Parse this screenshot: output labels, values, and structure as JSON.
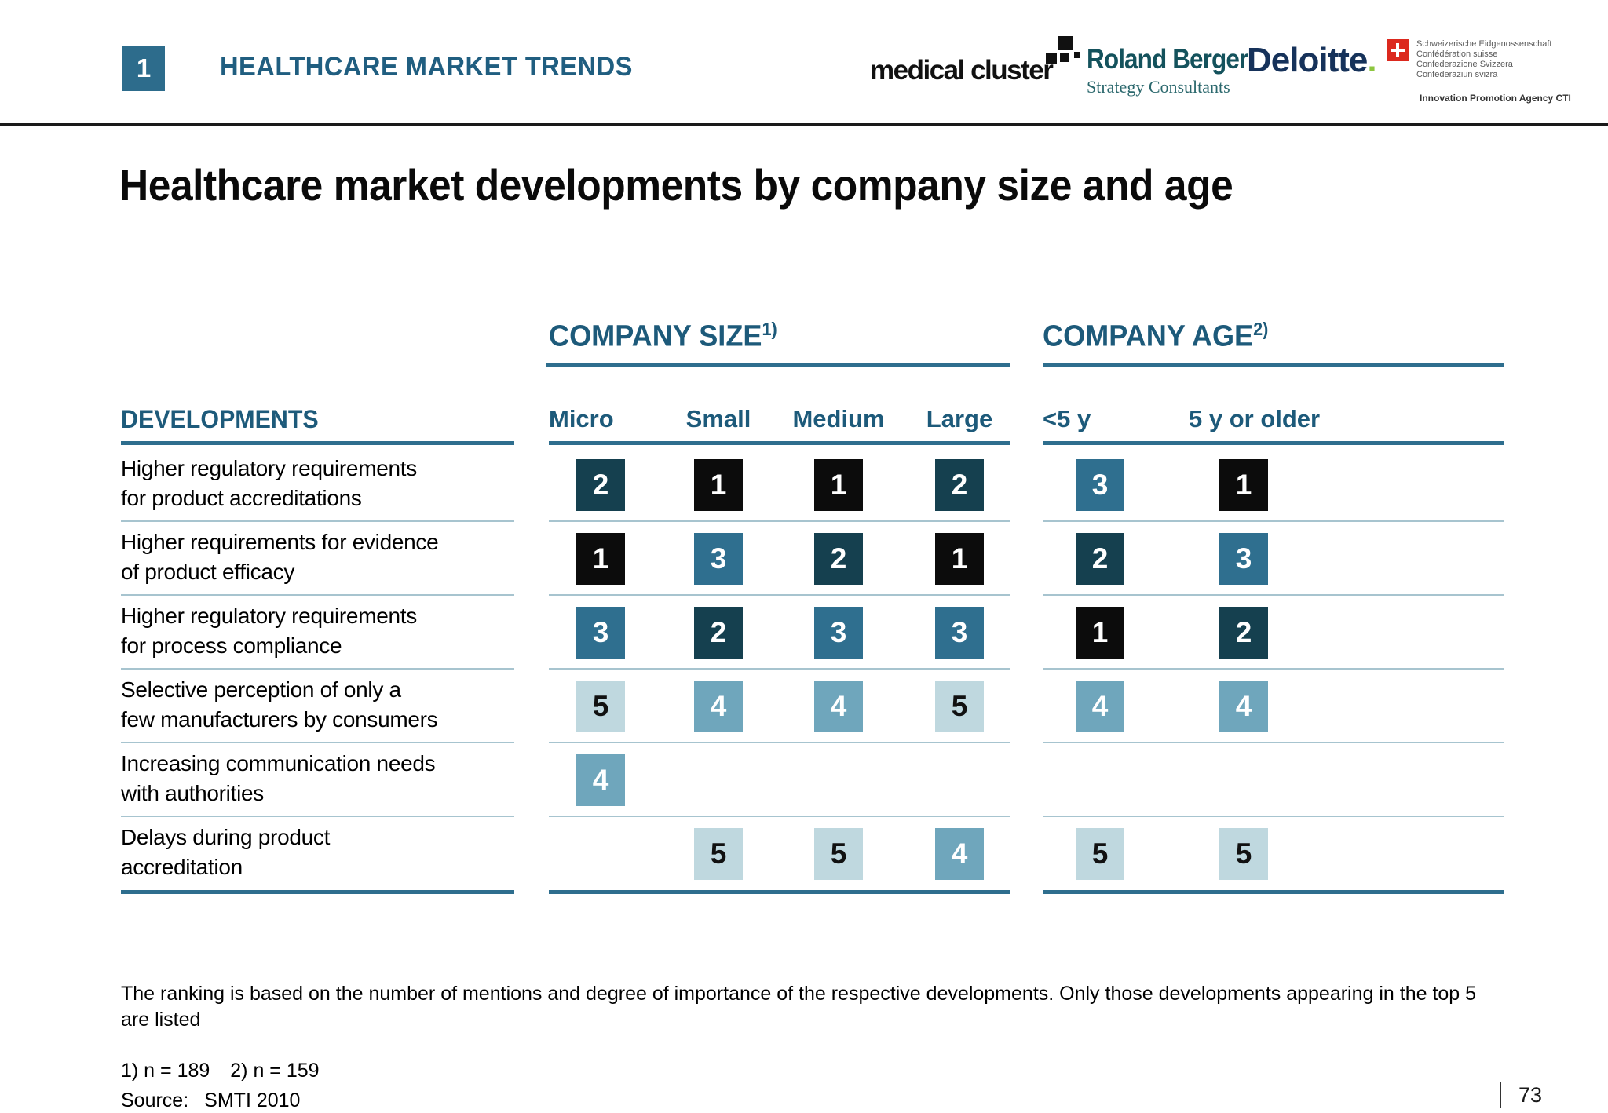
{
  "header": {
    "badge": "1",
    "section_title": "HEALTHCARE MARKET TRENDS",
    "logos": {
      "medical_cluster": {
        "text": "medical cluster"
      },
      "roland_berger": {
        "line1": "Roland Berger",
        "line2": "Strategy Consultants"
      },
      "deloitte": {
        "text": "Deloitte",
        "dot": "."
      },
      "swiss": {
        "lines": [
          "Schweizerische Eidgenossenschaft",
          "Confédération suisse",
          "Confederazione Svizzera",
          "Confederaziun svizra"
        ],
        "agency": "Innovation Promotion Agency CTI"
      }
    }
  },
  "slide": {
    "title": "Healthcare market developments by company size and age"
  },
  "table": {
    "developments_header": "DEVELOPMENTS",
    "groups": [
      {
        "label": "COMPANY SIZE",
        "sup": "1)",
        "columns": [
          "Micro",
          "Small",
          "Medium",
          "Large"
        ]
      },
      {
        "label": "COMPANY AGE",
        "sup": "2)",
        "columns": [
          "<5 y",
          "5 y or older"
        ]
      }
    ],
    "rows": [
      {
        "label_lines": [
          "Higher regulatory requirements",
          "for product accreditations"
        ],
        "size": [
          2,
          1,
          1,
          2
        ],
        "age": [
          3,
          1
        ]
      },
      {
        "label_lines": [
          "Higher requirements for evidence",
          "of product efficacy"
        ],
        "size": [
          1,
          3,
          2,
          1
        ],
        "age": [
          2,
          3
        ]
      },
      {
        "label_lines": [
          "Higher regulatory requirements",
          "for process compliance"
        ],
        "size": [
          3,
          2,
          3,
          3
        ],
        "age": [
          1,
          2
        ]
      },
      {
        "label_lines": [
          "Selective perception of only a",
          "few manufacturers by consumers"
        ],
        "size": [
          5,
          4,
          4,
          5
        ],
        "age": [
          4,
          4
        ]
      },
      {
        "label_lines": [
          "Increasing communication needs",
          "with authorities"
        ],
        "size": [
          4,
          null,
          null,
          null
        ],
        "age": [
          null,
          null
        ]
      },
      {
        "label_lines": [
          "Delays during product",
          "accreditation"
        ],
        "size": [
          null,
          5,
          5,
          4
        ],
        "age": [
          5,
          5
        ]
      }
    ]
  },
  "rank_styles": {
    "1": {
      "bg": "#0c0c0c",
      "fg": "#ffffff"
    },
    "2": {
      "bg": "#15404f",
      "fg": "#ffffff"
    },
    "3": {
      "bg": "#2f6f8f",
      "fg": "#ffffff"
    },
    "4": {
      "bg": "#6fa6bc",
      "fg": "#ffffff"
    },
    "5": {
      "bg": "#bfd8df",
      "fg": "#111111"
    }
  },
  "accent_colors": {
    "teal_heading": "#1d5a7a",
    "teal_rule": "#2e6e8e",
    "row_separator": "#a7c4cf",
    "badge_bg": "#2d6c8c"
  },
  "footer": {
    "note": "The ranking is based on the number of mentions and degree of importance of the respective developments. Only those developments appearing in the top 5 are listed",
    "footnote1": "1) n = 189",
    "footnote2": "2) n = 159",
    "source_label": "Source:",
    "source_value": "SMTI 2010",
    "page_number": "73"
  }
}
